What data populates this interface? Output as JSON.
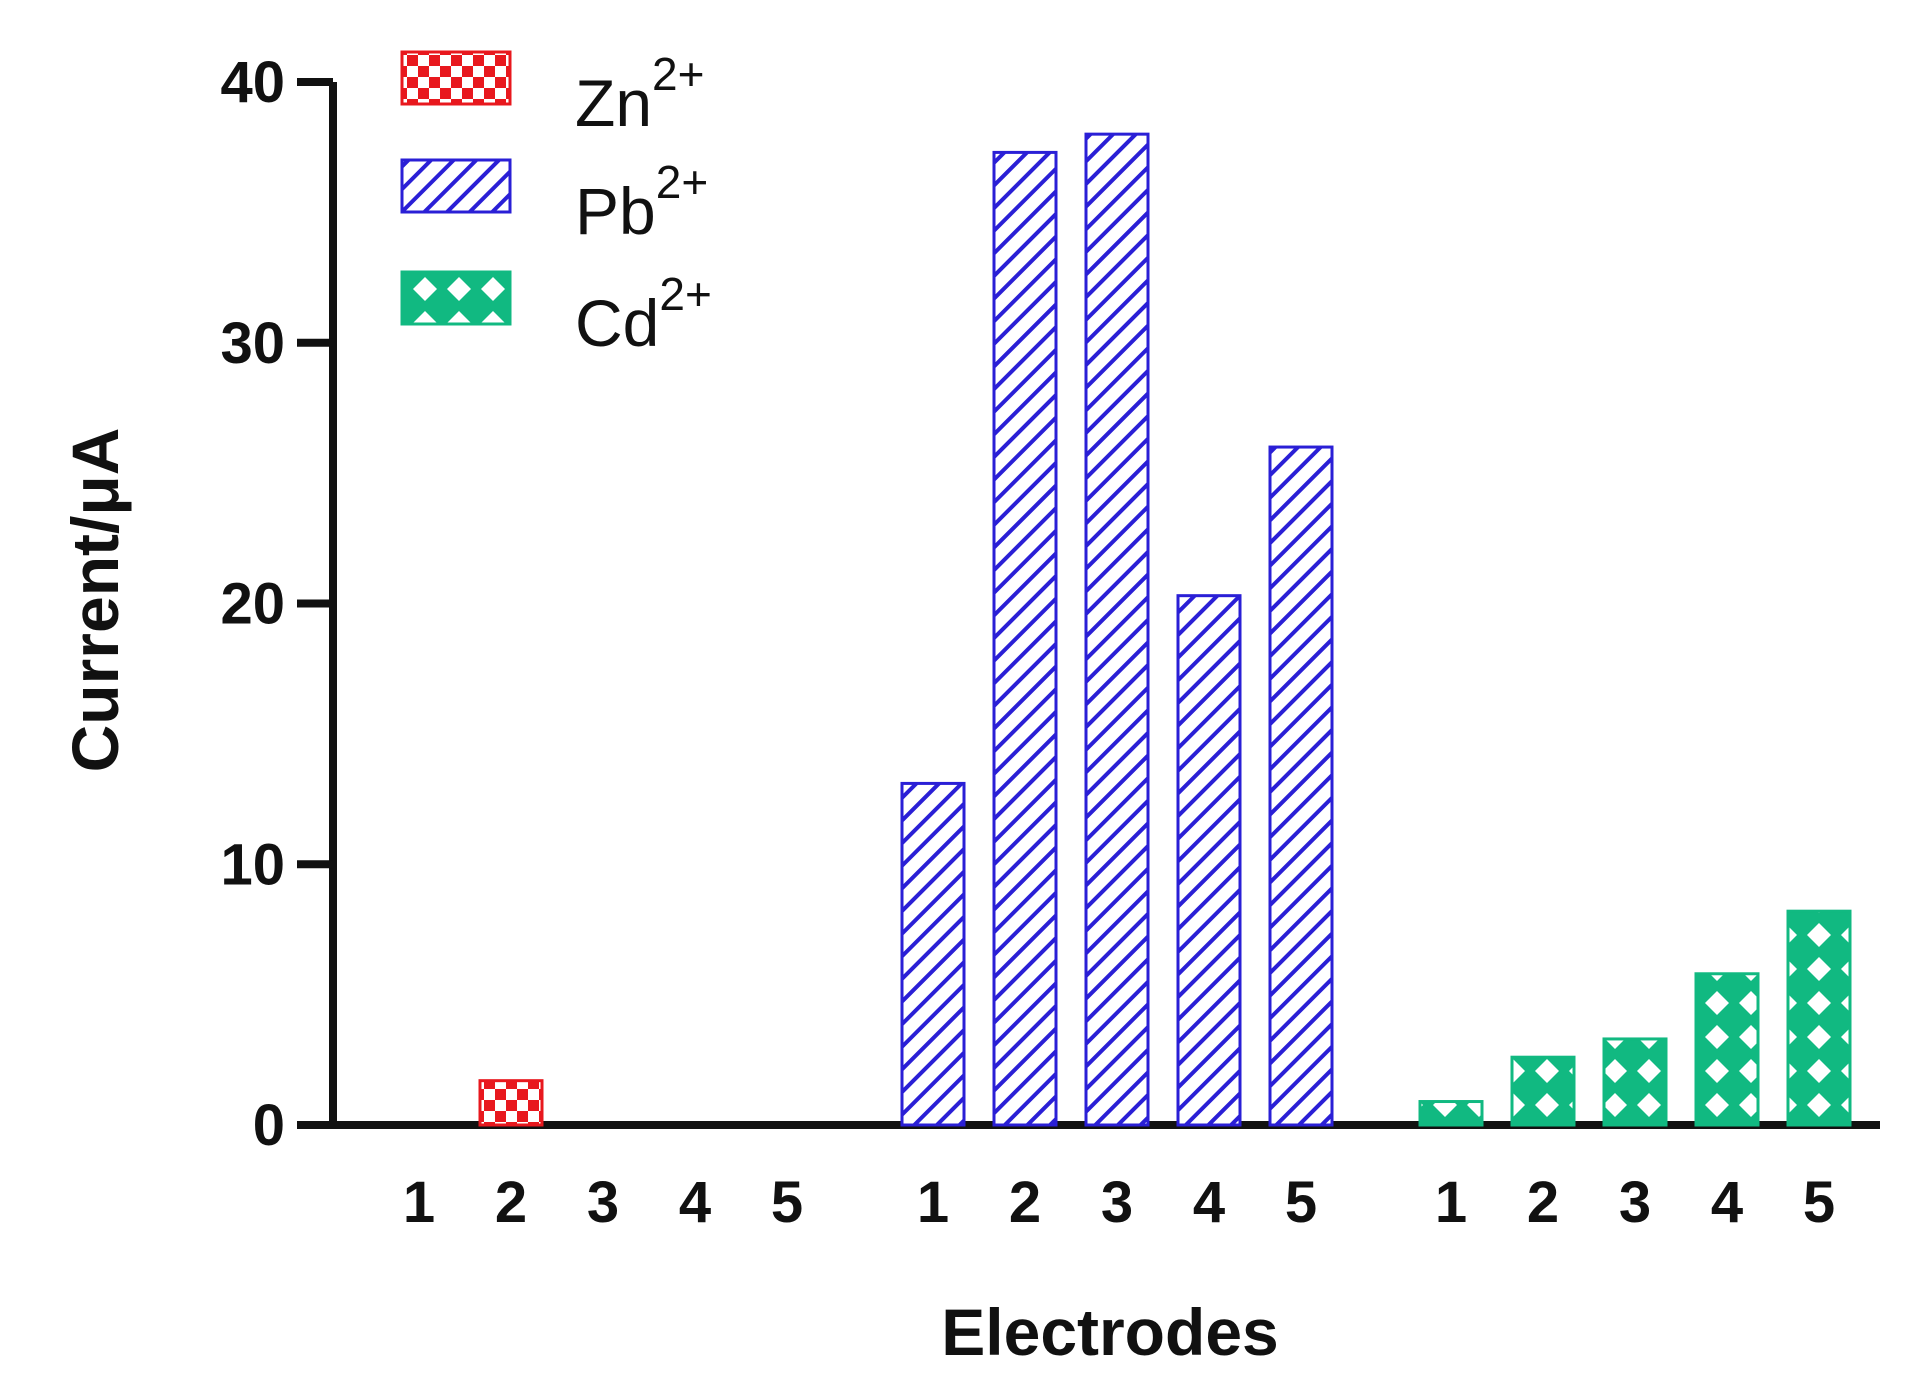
{
  "chart_data": {
    "type": "bar",
    "title": "",
    "xlabel": "Electrodes",
    "ylabel": "Current/μA",
    "ylim": [
      0,
      40
    ],
    "yticks": [
      0,
      10,
      20,
      30,
      40
    ],
    "categories": [
      "1",
      "2",
      "3",
      "4",
      "5"
    ],
    "grid": false,
    "legend_position": "top-left",
    "series": [
      {
        "name": "Zn",
        "charge": "2+",
        "pattern": "checkerboard",
        "color": "#e8181e",
        "values": [
          0,
          1.7,
          0,
          0,
          0
        ]
      },
      {
        "name": "Pb",
        "charge": "2+",
        "pattern": "diagonal-hatch",
        "color": "#2a1fd6",
        "values": [
          13.1,
          37.3,
          38.0,
          20.3,
          26.0
        ]
      },
      {
        "name": "Cd",
        "charge": "2+",
        "pattern": "cross-diamond",
        "color": "#11b981",
        "values": [
          0.9,
          2.6,
          3.3,
          5.8,
          8.2
        ]
      }
    ]
  }
}
